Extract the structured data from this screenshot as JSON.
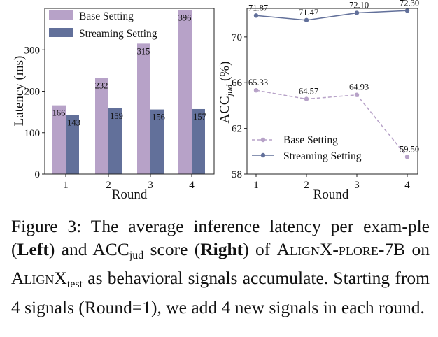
{
  "chart_data": [
    {
      "type": "bar",
      "categories": [
        "1",
        "2",
        "3",
        "4"
      ],
      "series": [
        {
          "name": "Base Setting",
          "color": "#b7a2c8",
          "values": [
            166,
            232,
            315,
            396
          ]
        },
        {
          "name": "Streaming Setting",
          "color": "#62709a",
          "values": [
            143,
            159,
            156,
            157
          ]
        }
      ],
      "xlabel": "Round",
      "ylabel": "Latency (ms)",
      "ylim": [
        0,
        400
      ],
      "yticks": [
        0,
        100,
        200,
        300
      ],
      "legend": "top-left"
    },
    {
      "type": "line",
      "categories": [
        "1",
        "2",
        "3",
        "4"
      ],
      "series": [
        {
          "name": "Base Setting",
          "color": "#b7a2c8",
          "style": "dashed",
          "values": [
            65.33,
            64.57,
            64.93,
            59.5
          ],
          "labels": [
            "65.33",
            "64.57",
            "64.93",
            "59.50"
          ]
        },
        {
          "name": "Streaming Setting",
          "color": "#62709a",
          "style": "solid",
          "values": [
            71.87,
            71.47,
            72.1,
            72.3
          ],
          "labels": [
            "71.87",
            "71.47",
            "72.10",
            "72.30"
          ]
        }
      ],
      "xlabel": "Round",
      "ylabel_main": "ACC",
      "ylabel_sub": "jud",
      "ylabel_tail": " (%)",
      "ylim": [
        58,
        72.5
      ],
      "yticks": [
        58,
        62,
        66,
        70
      ],
      "legend": "bottom-left"
    }
  ],
  "caption": {
    "p1": "Figure 3: The average inference latency per exam-ple (",
    "left": "Left",
    "p2": ") and ACC",
    "sub_jud": "jud",
    "p3": " score (",
    "right": "Right",
    "p4": ") of ",
    "model": "AlignX-plore-7B",
    "p5": " on ",
    "dataset": "AlignX",
    "sub_test": "test",
    "p6": " as behavioral signals accumulate. Starting from 4 signals (Round=1), we add 4 new signals in each round."
  }
}
